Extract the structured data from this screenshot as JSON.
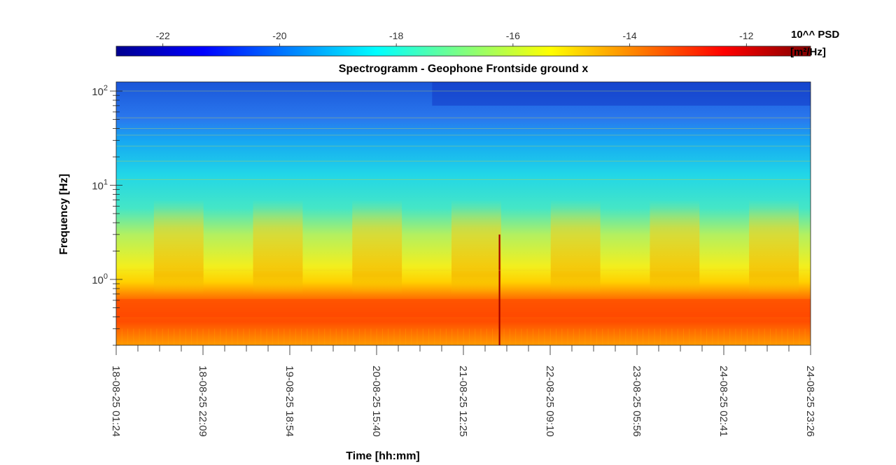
{
  "chart_data": {
    "type": "heatmap",
    "title": "Spectrogramm - Geophone Frontside ground x",
    "xlabel": "Time [hh:mm]",
    "ylabel": "Frequency [Hz]",
    "x_tick_labels": [
      "18-08-25 01:24",
      "18-08-25 22:09",
      "19-08-25 18:54",
      "20-08-25 15:40",
      "21-08-25 12:25",
      "22-08-25 09:10",
      "23-08-25 05:56",
      "24-08-25 02:41",
      "24-08-25 23:26"
    ],
    "y_scale": "log",
    "y_tick_labels": [
      "10^0",
      "10^1",
      "10^2"
    ],
    "ylim": [
      0.2,
      125
    ],
    "colorbar": {
      "label_line1": "10^^ PSD",
      "label_line2": "[m²/Hz]",
      "tick_labels": [
        "-22",
        "-20",
        "-18",
        "-16",
        "-14",
        "-12"
      ],
      "range": [
        -22.8,
        -10.9
      ],
      "colormap": "jet",
      "position": "top"
    },
    "bands_log10_psd": [
      {
        "freq_range_hz": [
          0.2,
          0.4
        ],
        "value": -12.5
      },
      {
        "freq_range_hz": [
          0.4,
          0.65
        ],
        "value": -12.0
      },
      {
        "freq_range_hz": [
          0.65,
          1.5
        ],
        "value": -15.0
      },
      {
        "freq_range_hz": [
          1.5,
          6
        ],
        "value": -16.0
      },
      {
        "freq_range_hz": [
          6,
          25
        ],
        "value": -17.5
      },
      {
        "freq_range_hz": [
          25,
          60
        ],
        "value": -18.8
      },
      {
        "freq_range_hz": [
          60,
          125
        ],
        "value": -20.3
      }
    ],
    "high_activity_periods": [
      "18-08-25",
      "19-08-25",
      "20-08-25",
      "21-08-25",
      "22-08-25",
      "23-08-25",
      "24-08-25"
    ],
    "transient_event_time": "21-08-25 ~21:40"
  }
}
